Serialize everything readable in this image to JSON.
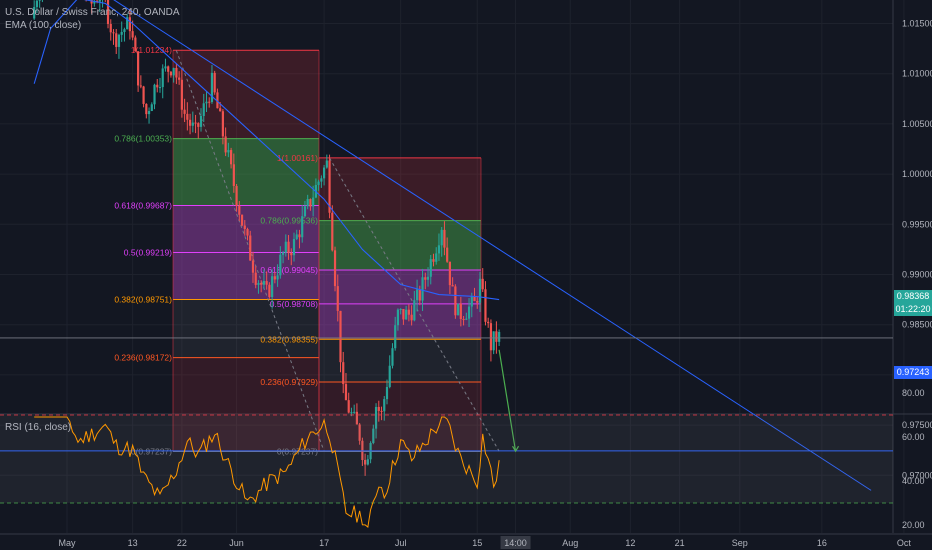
{
  "header": {
    "title": "U.S. Dollar / Swiss Franc, 240, OANDA",
    "ema_label": "EMA (100, close)",
    "rsi_label": "RSI (16, close)"
  },
  "price_axis": {
    "labels": [
      "1.02500",
      "1.02000",
      "1.01500",
      "1.01000",
      "1.00500",
      "1.00000",
      "0.99500",
      "0.99000",
      "0.98500",
      "0.98000",
      "0.97500",
      "0.97000"
    ],
    "current_price": "0.98368",
    "countdown": "01:22:20",
    "target_price": "0.97243"
  },
  "rsi_axis": {
    "labels": [
      "80.00",
      "60.00",
      "40.00",
      "20.00"
    ]
  },
  "time_axis": {
    "labels": [
      "May",
      "13",
      "22",
      "Jun",
      "17",
      "Jul",
      "15",
      "14:00",
      "Aug",
      "12",
      "21",
      "Sep",
      "16",
      "Oct"
    ]
  },
  "fib_left": {
    "levels": [
      {
        "label": "1(1.01234)",
        "color": "#f23645"
      },
      {
        "label": "0.786(1.00353)",
        "color": "#4caf50"
      },
      {
        "label": "0.618(0.99687)",
        "color": "#e040fb"
      },
      {
        "label": "0.5(0.99219)",
        "color": "#e040fb"
      },
      {
        "label": "0.382(0.98751)",
        "color": "#ff9800"
      },
      {
        "label": "0.236(0.98172)",
        "color": "#ff5722"
      },
      {
        "label": "0(0.97237)",
        "color": "#787b86"
      }
    ]
  },
  "fib_right": {
    "levels": [
      {
        "label": "1(1.00161)",
        "color": "#f23645"
      },
      {
        "label": "0.786(0.99536)",
        "color": "#4caf50"
      },
      {
        "label": "0.618(0.99045)",
        "color": "#e040fb"
      },
      {
        "label": "0.5(0.98708)",
        "color": "#e040fb"
      },
      {
        "label": "0.382(0.98355)",
        "color": "#ff9800"
      },
      {
        "label": "0.236(0.97929)",
        "color": "#ff5722"
      },
      {
        "label": "0(0.97237)",
        "color": "#787b86"
      }
    ]
  },
  "colors": {
    "background": "#131722",
    "up": "#26a69a",
    "down": "#ef5350",
    "ema": "#2962ff",
    "trendline": "#2962ff",
    "rsi": "#ff9800",
    "current_tag": "#26a69a",
    "target_tag": "#2962ff"
  },
  "chart_data": {
    "type": "candlestick",
    "symbol": "U.S. Dollar / Swiss Franc",
    "interval": "240",
    "exchange": "OANDA",
    "ylim": [
      0.9685,
      1.0265
    ],
    "close_path": [
      {
        "x": "Apr 25",
        "y": 1.0155
      },
      {
        "x": "Apr 28",
        "y": 1.0225
      },
      {
        "x": "May 1",
        "y": 1.018
      },
      {
        "x": "May 3",
        "y": 1.0205
      },
      {
        "x": "May 6",
        "y": 1.017
      },
      {
        "x": "May 8",
        "y": 1.0185
      },
      {
        "x": "May 10",
        "y": 1.0135
      },
      {
        "x": "May 13",
        "y": 1.015
      },
      {
        "x": "May 15",
        "y": 1.008
      },
      {
        "x": "May 16",
        "y": 1.006
      },
      {
        "x": "May 18",
        "y": 1.0095
      },
      {
        "x": "May 21",
        "y": 1.011
      },
      {
        "x": "May 23",
        "y": 1.006
      },
      {
        "x": "May 25",
        "y": 1.004
      },
      {
        "x": "May 28",
        "y": 1.009
      },
      {
        "x": "May 30",
        "y": 1.004
      },
      {
        "x": "Jun 3",
        "y": 0.994
      },
      {
        "x": "Jun 5",
        "y": 0.99
      },
      {
        "x": "Jun 7",
        "y": 0.988
      },
      {
        "x": "Jun 10",
        "y": 0.992
      },
      {
        "x": "Jun 12",
        "y": 0.993
      },
      {
        "x": "Jun 14",
        "y": 0.996
      },
      {
        "x": "Jun 17",
        "y": 1.0
      },
      {
        "x": "Jun 18",
        "y": 1.001
      },
      {
        "x": "Jun 20",
        "y": 0.986
      },
      {
        "x": "Jun 21",
        "y": 0.978
      },
      {
        "x": "Jun 24",
        "y": 0.974
      },
      {
        "x": "Jun 25",
        "y": 0.971
      },
      {
        "x": "Jun 27",
        "y": 0.977
      },
      {
        "x": "Jun 28",
        "y": 0.976
      },
      {
        "x": "Jul 1",
        "y": 0.986
      },
      {
        "x": "Jul 3",
        "y": 0.986
      },
      {
        "x": "Jul 5",
        "y": 0.988
      },
      {
        "x": "Jul 8",
        "y": 0.993
      },
      {
        "x": "Jul 9",
        "y": 0.995
      },
      {
        "x": "Jul 11",
        "y": 0.988
      },
      {
        "x": "Jul 12",
        "y": 0.986
      },
      {
        "x": "Jul 15",
        "y": 0.987
      },
      {
        "x": "Jul 16",
        "y": 0.989
      },
      {
        "x": "Jul 17",
        "y": 0.986
      },
      {
        "x": "Jul 18",
        "y": 0.983
      },
      {
        "x": "Jul 19",
        "y": 0.9837
      }
    ],
    "ema_path": [
      {
        "x": "Apr 25",
        "y": 1.009
      },
      {
        "x": "Apr 28",
        "y": 1.0145
      },
      {
        "x": "May 3",
        "y": 1.0175
      },
      {
        "x": "May 8",
        "y": 1.017
      },
      {
        "x": "May 13",
        "y": 1.015
      },
      {
        "x": "May 21",
        "y": 1.011
      },
      {
        "x": "May 28",
        "y": 1.0075
      },
      {
        "x": "Jun 3",
        "y": 1.0045
      },
      {
        "x": "Jun 12",
        "y": 1.0
      },
      {
        "x": "Jun 17",
        "y": 0.9975
      },
      {
        "x": "Jun 24",
        "y": 0.9925
      },
      {
        "x": "Jul 1",
        "y": 0.989
      },
      {
        "x": "Jul 8",
        "y": 0.988
      },
      {
        "x": "Jul 15",
        "y": 0.9878
      },
      {
        "x": "Jul 19",
        "y": 0.9875
      }
    ],
    "trendline": [
      {
        "x": "Apr 25",
        "y": 1.0225
      },
      {
        "x": "Sep 25",
        "y": 0.9685
      }
    ],
    "projection_arrow": [
      {
        "x": "Jul 19",
        "y": 0.9825
      },
      {
        "x": "Jul 22",
        "y": 0.9724
      }
    ],
    "rsi": {
      "ylim": [
        15,
        85
      ],
      "overbought": 70,
      "oversold": 30,
      "path": [
        {
          "x": "Apr 25",
          "y": 78
        },
        {
          "x": "Apr 28",
          "y": 80
        },
        {
          "x": "May 1",
          "y": 70
        },
        {
          "x": "May 3",
          "y": 58
        },
        {
          "x": "May 8",
          "y": 65
        },
        {
          "x": "May 10",
          "y": 56
        },
        {
          "x": "May 13",
          "y": 54
        },
        {
          "x": "May 15",
          "y": 42
        },
        {
          "x": "May 18",
          "y": 32
        },
        {
          "x": "May 21",
          "y": 45
        },
        {
          "x": "May 23",
          "y": 58
        },
        {
          "x": "May 25",
          "y": 52
        },
        {
          "x": "May 28",
          "y": 62
        },
        {
          "x": "May 30",
          "y": 50
        },
        {
          "x": "Jun 3",
          "y": 30
        },
        {
          "x": "Jun 5",
          "y": 35
        },
        {
          "x": "Jun 7",
          "y": 40
        },
        {
          "x": "Jun 10",
          "y": 44
        },
        {
          "x": "Jun 12",
          "y": 52
        },
        {
          "x": "Jun 14",
          "y": 60
        },
        {
          "x": "Jun 17",
          "y": 66
        },
        {
          "x": "Jun 18",
          "y": 62
        },
        {
          "x": "Jun 20",
          "y": 38
        },
        {
          "x": "Jun 21",
          "y": 26
        },
        {
          "x": "Jun 24",
          "y": 24
        },
        {
          "x": "Jun 25",
          "y": 18
        },
        {
          "x": "Jun 27",
          "y": 40
        },
        {
          "x": "Jun 28",
          "y": 34
        },
        {
          "x": "Jul 1",
          "y": 58
        },
        {
          "x": "Jul 3",
          "y": 50
        },
        {
          "x": "Jul 5",
          "y": 56
        },
        {
          "x": "Jul 8",
          "y": 66
        },
        {
          "x": "Jul 9",
          "y": 70
        },
        {
          "x": "Jul 11",
          "y": 56
        },
        {
          "x": "Jul 12",
          "y": 50
        },
        {
          "x": "Jul 15",
          "y": 40
        },
        {
          "x": "Jul 16",
          "y": 60
        },
        {
          "x": "Jul 17",
          "y": 50
        },
        {
          "x": "Jul 18",
          "y": 38
        },
        {
          "x": "Jul 19",
          "y": 46
        }
      ]
    }
  }
}
